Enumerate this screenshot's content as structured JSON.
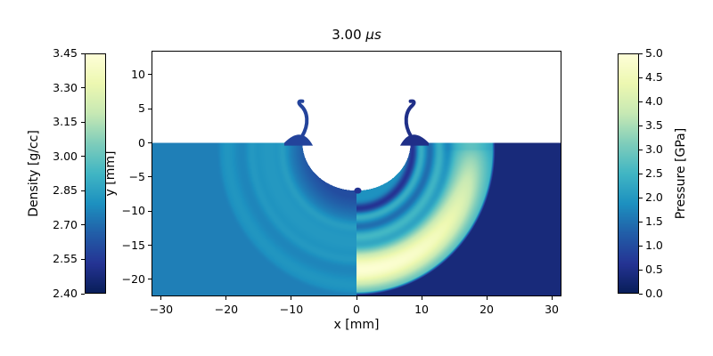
{
  "chart_data": {
    "type": "heatmap",
    "title": "3.00 μs",
    "title_parts": {
      "prefix": "3.00 ",
      "unit": "μs"
    },
    "xlabel": "x [mm]",
    "ylabel": "y [mm]",
    "xlim": [
      -31.5,
      31.5
    ],
    "ylim": [
      -22.5,
      13.5
    ],
    "grid": false,
    "xticks": [
      {
        "v": -30,
        "label": "−30"
      },
      {
        "v": -20,
        "label": "−20"
      },
      {
        "v": -10,
        "label": "−10"
      },
      {
        "v": 0,
        "label": "0"
      },
      {
        "v": 10,
        "label": "10"
      },
      {
        "v": 20,
        "label": "20"
      },
      {
        "v": 30,
        "label": "30"
      }
    ],
    "yticks": [
      {
        "v": 10,
        "label": "10"
      },
      {
        "v": 5,
        "label": "5"
      },
      {
        "v": 0,
        "label": "0"
      },
      {
        "v": -5,
        "label": "−5"
      },
      {
        "v": -10,
        "label": "−10"
      },
      {
        "v": -15,
        "label": "−15"
      },
      {
        "v": -20,
        "label": "−20"
      }
    ],
    "colormap": {
      "name": "YlGnBu_r",
      "stops": [
        "#081d58",
        "#253494",
        "#225ea8",
        "#1d91c0",
        "#41b6c4",
        "#7fcdbb",
        "#c7e9b4",
        "#edf8b1",
        "#ffffd9"
      ]
    },
    "left_colorbar": {
      "label": "Density [g/cc]",
      "min": 2.4,
      "max": 3.45,
      "ticks": [
        {
          "v": 2.4,
          "label": "2.40"
        },
        {
          "v": 2.55,
          "label": "2.55"
        },
        {
          "v": 2.7,
          "label": "2.70"
        },
        {
          "v": 2.85,
          "label": "2.85"
        },
        {
          "v": 3.0,
          "label": "3.00"
        },
        {
          "v": 3.15,
          "label": "3.15"
        },
        {
          "v": 3.3,
          "label": "3.30"
        },
        {
          "v": 3.45,
          "label": "3.45"
        }
      ]
    },
    "right_colorbar": {
      "label": "Pressure [GPa]",
      "min": 0.0,
      "max": 5.0,
      "ticks": [
        {
          "v": 0.0,
          "label": "0.0"
        },
        {
          "v": 0.5,
          "label": "0.5"
        },
        {
          "v": 1.0,
          "label": "1.0"
        },
        {
          "v": 1.5,
          "label": "1.5"
        },
        {
          "v": 2.0,
          "label": "2.0"
        },
        {
          "v": 2.5,
          "label": "2.5"
        },
        {
          "v": 3.0,
          "label": "3.0"
        },
        {
          "v": 3.5,
          "label": "3.5"
        },
        {
          "v": 4.0,
          "label": "4.0"
        },
        {
          "v": 4.5,
          "label": "4.5"
        },
        {
          "v": 5.0,
          "label": "5.0"
        }
      ]
    },
    "simulation": {
      "time_label": "3.00 μs",
      "left_half_field": "Density",
      "right_half_field": "Pressure",
      "crater": {
        "rim_halfwidth_mm": 8.3,
        "depth_mm": 7.0
      },
      "shock_center_mm": [
        0,
        -1.0
      ],
      "shock_front_radius_mm": 21.3,
      "ejecta": {
        "base_x_mm": 8.3,
        "tip_height_mm": 6.2
      }
    }
  }
}
